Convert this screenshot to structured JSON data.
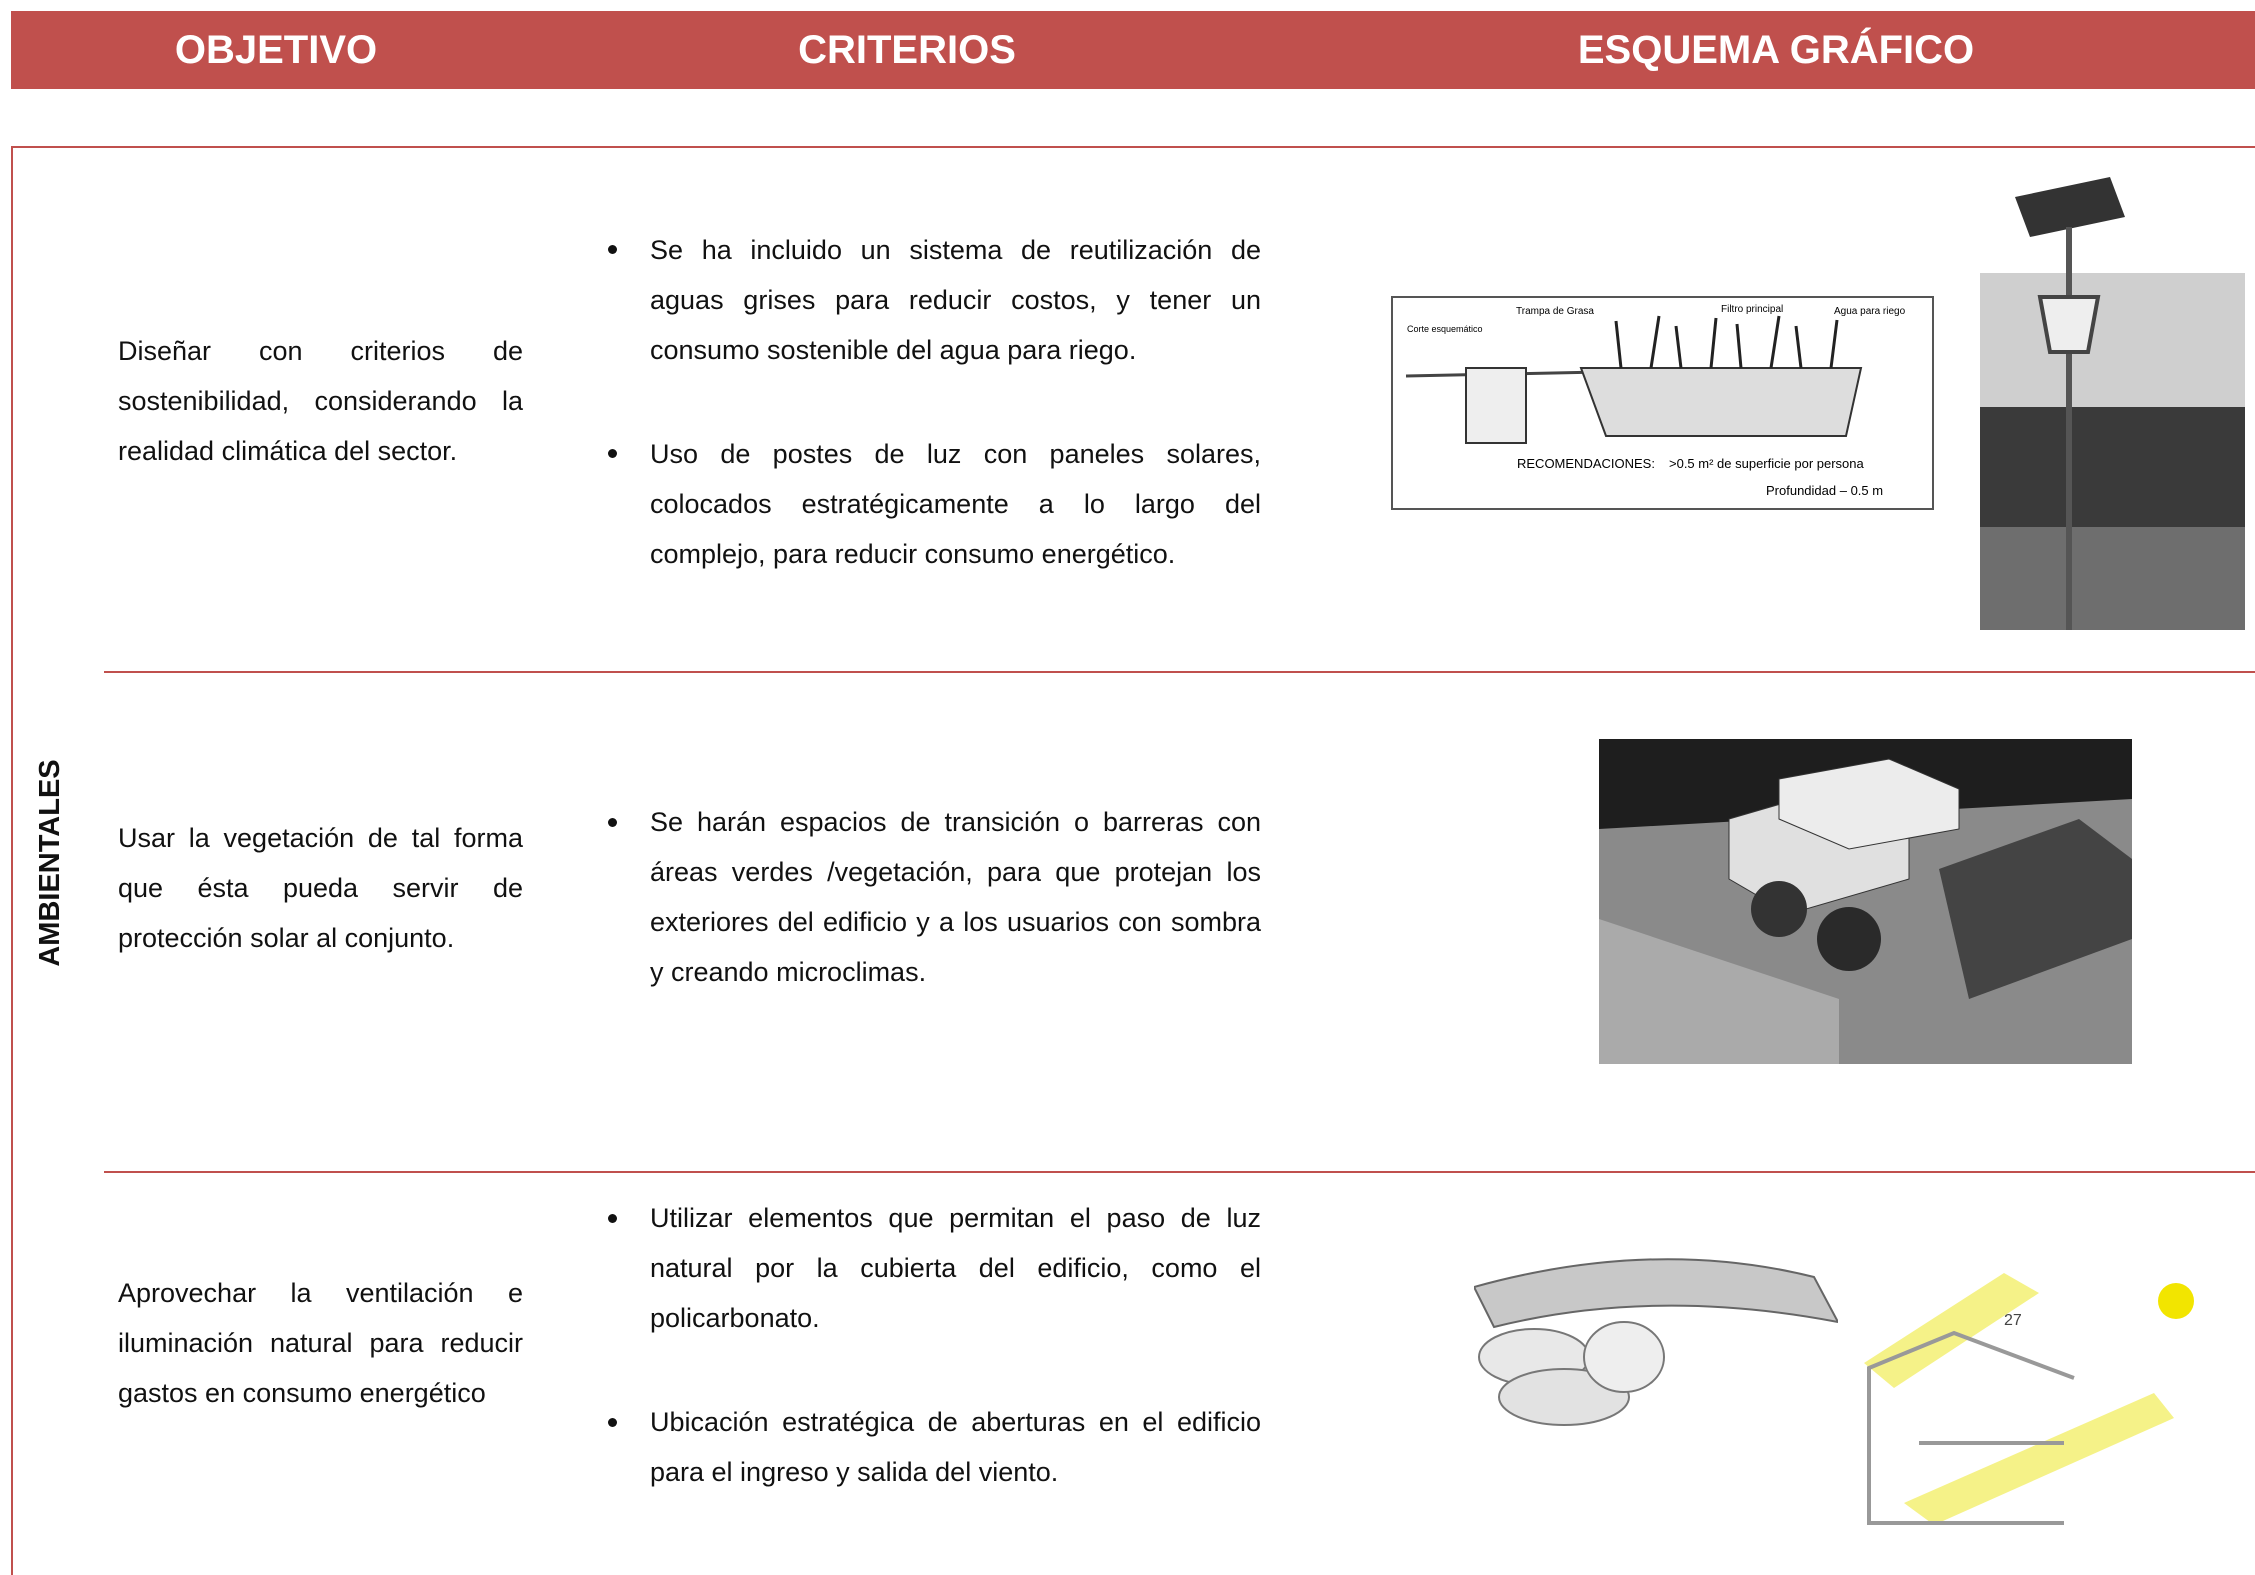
{
  "header": {
    "columns": [
      "OBJETIVO",
      "CRITERIOS",
      "ESQUEMA GRÁFICO"
    ]
  },
  "section": "AMBIENTALES",
  "rows": [
    {
      "objective": "Diseñar con criterios de sostenibilidad, considerando la realidad climática del sector.",
      "criteria": [
        "Se ha incluido un sistema de reutilización de aguas grises para reducir costos, y tener un consumo sostenible del agua para riego.",
        "Uso de postes de luz con paneles solares, colocados estratégicamente a lo largo del complejo, para reducir consumo energético."
      ],
      "figure_labels": [
        "Corte esquemático",
        "Trampa de Grasa",
        "Filtro principal",
        "Agua para riego",
        "RECOMENDACIONES:",
        ">0.5 m² de superficie por persona",
        "Profundidad – 0.5 m"
      ]
    },
    {
      "objective": "Usar la vegetación de tal forma que ésta pueda servir de protección solar al conjunto.",
      "criteria": [
        "Se harán  espacios de transición o barreras con áreas verdes /vegetación, para que protejan los exteriores del edificio y a los usuarios con sombra y creando microclimas."
      ]
    },
    {
      "objective": "Aprovechar la ventilación e iluminación natural para reducir gastos en consumo energético",
      "criteria": [
        "Utilizar elementos que permitan el paso de luz natural por la cubierta del edificio, como el policarbonato.",
        "Ubicación estratégica de aberturas en el edificio para el ingreso y salida del viento."
      ],
      "figure_labels": [
        "27"
      ]
    }
  ]
}
